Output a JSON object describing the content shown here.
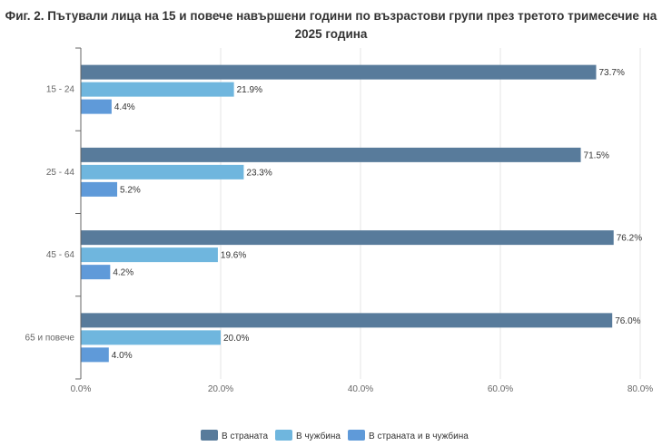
{
  "chart_data": {
    "type": "bar",
    "orientation": "horizontal",
    "title": "Фиг. 2. Пътували лица на 15 и повече навършени години по възрастови групи през третото тримесечие на 2025 година",
    "categories": [
      "15 - 24",
      "25 - 44",
      "45 - 64",
      "65 и повече"
    ],
    "series": [
      {
        "name": "В страната",
        "values": [
          73.7,
          71.5,
          76.2,
          76.0
        ],
        "labels": [
          "73.7%",
          "71.5%",
          "76.2%",
          "76.0%"
        ],
        "color": "#587b9b"
      },
      {
        "name": "В чужбина",
        "values": [
          21.9,
          23.3,
          19.6,
          20.0
        ],
        "labels": [
          "21.9%",
          "23.3%",
          "19.6%",
          "20.0%"
        ],
        "color": "#6fb6de"
      },
      {
        "name": "В страната и в чужбина",
        "values": [
          4.4,
          5.2,
          4.2,
          4.0
        ],
        "labels": [
          "4.4%",
          "5.2%",
          "4.2%",
          "4.0%"
        ],
        "color": "#5f9ad9"
      }
    ],
    "x_ticks": [
      0,
      20,
      40,
      60,
      80
    ],
    "x_tick_labels": [
      "0.0%",
      "20.0%",
      "40.0%",
      "60.0%",
      "80.0%"
    ],
    "xlim": [
      0,
      80
    ],
    "grid": true,
    "legend_position": "bottom-center"
  }
}
